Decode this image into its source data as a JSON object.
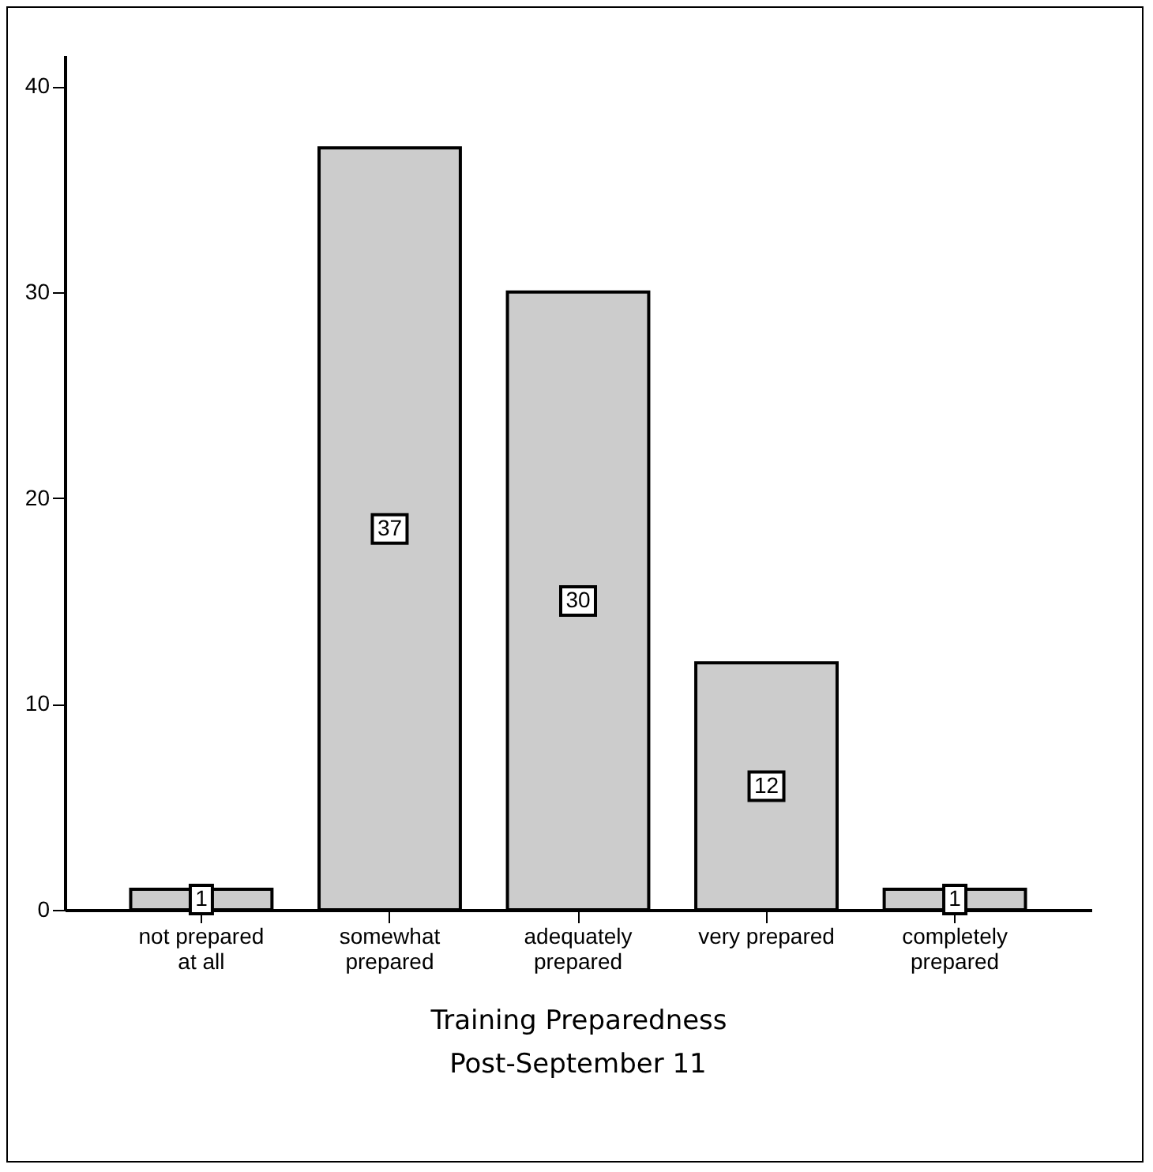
{
  "chart_data": {
    "type": "bar",
    "title": "Post-September 11",
    "xlabel": "Training Preparedness",
    "categories": [
      "not prepared at all",
      "somewhat prepared",
      "adequately prepared",
      "very prepared",
      "completely prepared"
    ],
    "values": [
      1,
      37,
      30,
      12,
      1
    ],
    "color": "#cccccc",
    "ylim": [
      0,
      41.5
    ],
    "yticks": [
      0,
      10,
      20,
      30,
      40
    ],
    "grid": false,
    "data_labels": true
  }
}
